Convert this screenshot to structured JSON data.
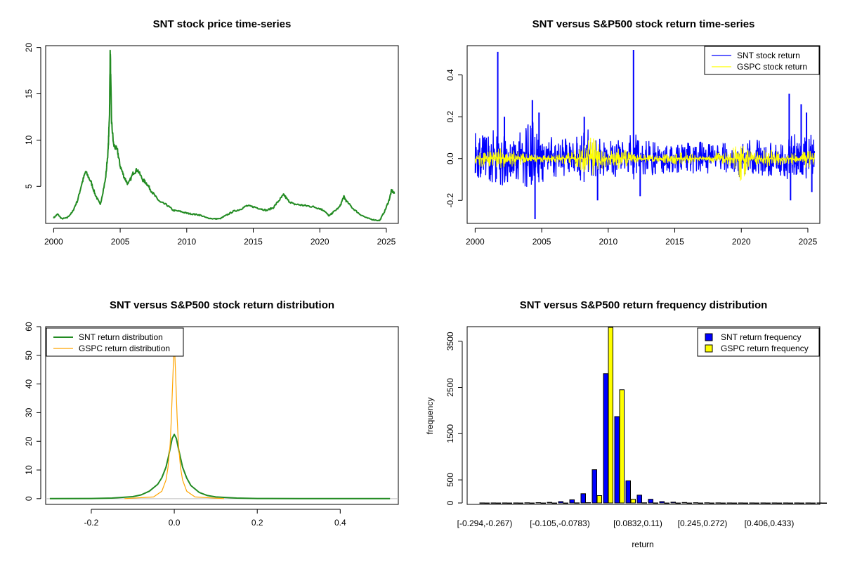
{
  "chart_data": [
    {
      "type": "line",
      "title": "SNT stock price time-series",
      "xlabel": "",
      "ylabel": "",
      "xlim": [
        1999.4,
        2025.9
      ],
      "ylim": [
        1.0,
        20.2
      ],
      "x_ticks": [
        "2000",
        "2005",
        "2010",
        "2015",
        "2020",
        "2025"
      ],
      "y_ticks": [
        "5",
        "10",
        "15",
        "20"
      ],
      "series": [
        {
          "color": "#228b22",
          "x": [
            2000.0,
            2000.3,
            2000.6,
            2001.0,
            2001.4,
            2001.8,
            2002.1,
            2002.4,
            2002.8,
            2003.1,
            2003.5,
            2003.9,
            2004.1,
            2004.2,
            2004.25,
            2004.35,
            2004.5,
            2004.8,
            2005.0,
            2005.3,
            2005.6,
            2006.0,
            2006.3,
            2006.7,
            2007.0,
            2007.3,
            2007.7,
            2008.0,
            2008.5,
            2009.0,
            2009.5,
            2010.0,
            2010.5,
            2011.0,
            2011.5,
            2012.0,
            2012.5,
            2013.0,
            2013.5,
            2014.0,
            2014.5,
            2015.0,
            2015.5,
            2016.0,
            2016.5,
            2017.0,
            2017.3,
            2017.6,
            2018.0,
            2018.5,
            2019.0,
            2019.5,
            2020.0,
            2020.3,
            2020.7,
            2021.0,
            2021.5,
            2021.8,
            2022.0,
            2022.5,
            2023.0,
            2023.5,
            2024.0,
            2024.5,
            2024.9,
            2025.2,
            2025.4,
            2025.6
          ],
          "y": [
            1.6,
            2.0,
            1.5,
            1.6,
            2.2,
            3.5,
            5.2,
            6.6,
            5.5,
            4.2,
            3.0,
            5.8,
            9.0,
            13.0,
            19.8,
            12.0,
            9.5,
            8.8,
            7.2,
            6.0,
            5.2,
            6.5,
            6.8,
            5.7,
            5.3,
            4.6,
            3.8,
            3.3,
            3.0,
            2.4,
            2.3,
            2.1,
            2.0,
            1.9,
            1.6,
            1.5,
            1.5,
            1.9,
            2.3,
            2.5,
            2.9,
            2.8,
            2.6,
            2.4,
            2.7,
            3.6,
            4.1,
            3.5,
            3.1,
            3.0,
            2.9,
            2.8,
            2.6,
            2.4,
            1.8,
            2.2,
            2.8,
            3.9,
            3.4,
            2.6,
            2.0,
            1.6,
            1.4,
            1.3,
            2.4,
            3.5,
            4.6,
            4.2
          ]
        }
      ]
    },
    {
      "type": "line",
      "title": "SNT versus S&P500 stock return time-series",
      "xlabel": "",
      "ylabel": "",
      "xlim": [
        1999.4,
        2025.9
      ],
      "ylim": [
        -0.31,
        0.54
      ],
      "x_ticks": [
        "2000",
        "2005",
        "2010",
        "2015",
        "2020",
        "2025"
      ],
      "y_ticks": [
        "-0.2",
        "0.0",
        "0.2",
        "0.4"
      ],
      "legend": {
        "position": "top-right",
        "entries": [
          "SNT stock return",
          "GSPC stock return"
        ]
      },
      "series": [
        {
          "name": "SNT stock return",
          "color": "#0000ff",
          "band": [
            [
              2000,
              0.14,
              -0.14
            ],
            [
              2000.5,
              0.12,
              -0.12
            ],
            [
              2001,
              0.13,
              -0.11
            ],
            [
              2001.5,
              0.14,
              -0.13
            ],
            [
              2002,
              0.12,
              -0.13
            ],
            [
              2002.5,
              0.13,
              -0.12
            ],
            [
              2003,
              0.11,
              -0.1
            ],
            [
              2003.5,
              0.15,
              -0.12
            ],
            [
              2004,
              0.2,
              -0.16
            ],
            [
              2004.5,
              0.18,
              -0.15
            ],
            [
              2005,
              0.14,
              -0.12
            ],
            [
              2005.5,
              0.12,
              -0.1
            ],
            [
              2006,
              0.11,
              -0.1
            ],
            [
              2006.5,
              0.13,
              -0.1
            ],
            [
              2007,
              0.1,
              -0.09
            ],
            [
              2007.5,
              0.11,
              -0.08
            ],
            [
              2008,
              0.12,
              -0.11
            ],
            [
              2008.5,
              0.14,
              -0.12
            ],
            [
              2009,
              0.12,
              -0.11
            ],
            [
              2009.5,
              0.1,
              -0.09
            ],
            [
              2010,
              0.09,
              -0.08
            ],
            [
              2010.5,
              0.1,
              -0.09
            ],
            [
              2011,
              0.09,
              -0.09
            ],
            [
              2011.5,
              0.11,
              -0.1
            ],
            [
              2012,
              0.12,
              -0.1
            ],
            [
              2012.5,
              0.11,
              -0.09
            ],
            [
              2013,
              0.09,
              -0.08
            ],
            [
              2013.5,
              0.08,
              -0.08
            ],
            [
              2014,
              0.09,
              -0.08
            ],
            [
              2014.5,
              0.08,
              -0.07
            ],
            [
              2015,
              0.08,
              -0.07
            ],
            [
              2015.5,
              0.07,
              -0.07
            ],
            [
              2016,
              0.08,
              -0.08
            ],
            [
              2016.5,
              0.07,
              -0.07
            ],
            [
              2017,
              0.1,
              -0.08
            ],
            [
              2017.5,
              0.09,
              -0.08
            ],
            [
              2018,
              0.08,
              -0.08
            ],
            [
              2018.5,
              0.07,
              -0.07
            ],
            [
              2019,
              0.08,
              -0.07
            ],
            [
              2019.5,
              0.07,
              -0.07
            ],
            [
              2020,
              0.1,
              -0.1
            ],
            [
              2020.5,
              0.09,
              -0.09
            ],
            [
              2021,
              0.1,
              -0.08
            ],
            [
              2021.5,
              0.09,
              -0.08
            ],
            [
              2022,
              0.08,
              -0.09
            ],
            [
              2022.5,
              0.09,
              -0.09
            ],
            [
              2023,
              0.09,
              -0.09
            ],
            [
              2023.5,
              0.1,
              -0.1
            ],
            [
              2024,
              0.12,
              -0.1
            ],
            [
              2024.5,
              0.11,
              -0.09
            ],
            [
              2025,
              0.12,
              -0.1
            ],
            [
              2025.5,
              0.11,
              -0.09
            ]
          ],
          "spikes": [
            [
              2001.7,
              0.51
            ],
            [
              2004.3,
              0.28
            ],
            [
              2004.5,
              -0.29
            ],
            [
              2011.9,
              0.52
            ],
            [
              2023.6,
              0.31
            ],
            [
              2023.7,
              -0.2
            ],
            [
              2024.5,
              0.26
            ],
            [
              2009.2,
              -0.2
            ],
            [
              2012.4,
              -0.18
            ],
            [
              2004.8,
              0.22
            ],
            [
              2002.2,
              0.2
            ],
            [
              2008.2,
              0.2
            ],
            [
              2024.9,
              0.22
            ],
            [
              2025.3,
              -0.16
            ]
          ]
        },
        {
          "name": "GSPC stock return",
          "color": "#ffff00",
          "band": [
            [
              2000,
              0.04,
              -0.04
            ],
            [
              2001,
              0.04,
              -0.04
            ],
            [
              2002,
              0.05,
              -0.05
            ],
            [
              2003,
              0.04,
              -0.04
            ],
            [
              2004,
              0.02,
              -0.02
            ],
            [
              2005,
              0.02,
              -0.02
            ],
            [
              2006,
              0.02,
              -0.02
            ],
            [
              2007,
              0.03,
              -0.03
            ],
            [
              2008,
              0.06,
              -0.06
            ],
            [
              2008.8,
              0.11,
              -0.09
            ],
            [
              2009.5,
              0.05,
              -0.05
            ],
            [
              2010,
              0.04,
              -0.04
            ],
            [
              2011,
              0.05,
              -0.05
            ],
            [
              2012,
              0.03,
              -0.03
            ],
            [
              2013,
              0.02,
              -0.02
            ],
            [
              2014,
              0.02,
              -0.02
            ],
            [
              2015,
              0.03,
              -0.03
            ],
            [
              2016,
              0.03,
              -0.03
            ],
            [
              2017,
              0.01,
              -0.01
            ],
            [
              2018,
              0.03,
              -0.03
            ],
            [
              2019,
              0.03,
              -0.03
            ],
            [
              2020,
              0.09,
              -0.12
            ],
            [
              2020.5,
              0.05,
              -0.05
            ],
            [
              2021,
              0.03,
              -0.03
            ],
            [
              2022,
              0.05,
              -0.04
            ],
            [
              2023,
              0.03,
              -0.03
            ],
            [
              2024,
              0.03,
              -0.03
            ],
            [
              2025,
              0.04,
              -0.05
            ],
            [
              2025.5,
              0.03,
              -0.03
            ]
          ]
        }
      ]
    },
    {
      "type": "line",
      "title": "SNT versus S&P500 stock return distribution",
      "xlabel": "",
      "ylabel": "",
      "xlim": [
        -0.31,
        0.54
      ],
      "ylim": [
        -2,
        60
      ],
      "x_ticks": [
        "-0.2",
        "0.0",
        "0.2",
        "0.4"
      ],
      "y_ticks": [
        "0",
        "10",
        "20",
        "30",
        "40",
        "50",
        "60"
      ],
      "legend": {
        "position": "top-left",
        "entries": [
          "SNT return distribution",
          "GSPC return distribution"
        ]
      },
      "series": [
        {
          "name": "SNT return distribution",
          "color": "#228b22",
          "x": [
            -0.3,
            -0.2,
            -0.15,
            -0.1,
            -0.08,
            -0.06,
            -0.04,
            -0.03,
            -0.02,
            -0.015,
            -0.01,
            -0.005,
            0.0,
            0.005,
            0.01,
            0.02,
            0.03,
            0.04,
            0.06,
            0.08,
            0.1,
            0.15,
            0.2,
            0.3,
            0.52
          ],
          "y": [
            0,
            0.05,
            0.2,
            0.7,
            1.3,
            2.6,
            5.0,
            7.3,
            11.0,
            14.0,
            17.5,
            21.0,
            22.4,
            21.0,
            17.5,
            11.0,
            7.2,
            4.6,
            2.2,
            1.1,
            0.6,
            0.2,
            0.05,
            0.02,
            0
          ]
        },
        {
          "name": "GSPC return distribution",
          "color": "#ffa500",
          "x": [
            -0.12,
            -0.05,
            -0.03,
            -0.02,
            -0.015,
            -0.01,
            -0.007,
            -0.005,
            -0.003,
            -0.001,
            0.0,
            0.001,
            0.003,
            0.005,
            0.007,
            0.01,
            0.015,
            0.02,
            0.03,
            0.05,
            0.12
          ],
          "y": [
            0,
            0.6,
            2.6,
            6.5,
            11.0,
            19.0,
            28.0,
            36.0,
            44.0,
            51.0,
            53.0,
            51.0,
            44.0,
            36.0,
            28.0,
            19.0,
            11.0,
            6.5,
            2.6,
            0.6,
            0
          ]
        }
      ]
    },
    {
      "type": "bar",
      "title": "SNT versus S&P500 return frequency distribution",
      "xlabel": "return",
      "ylabel": "frequency",
      "ylim": [
        0,
        3800
      ],
      "y_ticks": [
        "0",
        "500",
        "1500",
        "2500",
        "3500"
      ],
      "x_tick_labels": [
        "[-0.294,-0.267)",
        "[-0.105,-0.0783)",
        "[0.0832,0.11)",
        "[0.245,0.272)",
        "[0.406,0.433)"
      ],
      "legend": {
        "position": "top-right",
        "entries": [
          "SNT return frequency",
          "GSPC return frequency"
        ]
      },
      "categories_count": 31,
      "series": [
        {
          "name": "SNT return frequency",
          "color": "#0000ff",
          "values": [
            1,
            1,
            1,
            2,
            4,
            8,
            14,
            30,
            70,
            200,
            720,
            2800,
            1870,
            480,
            170,
            80,
            30,
            18,
            10,
            6,
            4,
            3,
            2,
            2,
            1,
            1,
            1,
            1,
            1,
            1,
            1
          ]
        },
        {
          "name": "GSPC return frequency",
          "color": "#ffff00",
          "values": [
            0,
            0,
            0,
            0,
            0,
            0,
            0,
            0,
            3,
            8,
            160,
            3800,
            2450,
            80,
            5,
            1,
            0,
            0,
            0,
            0,
            0,
            0,
            0,
            0,
            0,
            0,
            0,
            0,
            0,
            0,
            0
          ]
        }
      ]
    }
  ]
}
